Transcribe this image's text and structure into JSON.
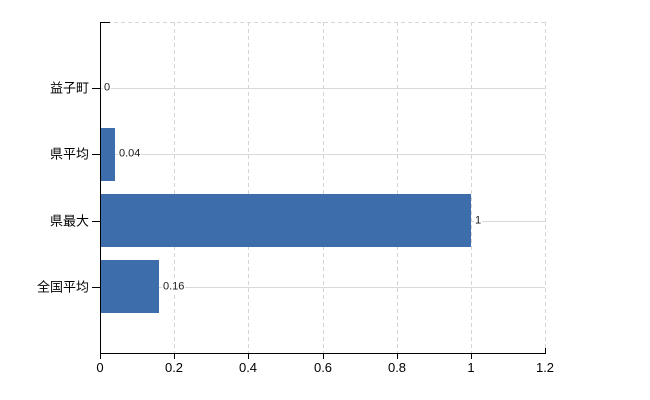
{
  "chart_data": {
    "type": "bar",
    "orientation": "horizontal",
    "title": "",
    "categories": [
      "益子町",
      "県平均",
      "県最大",
      "全国平均"
    ],
    "values": [
      0,
      0.04,
      1,
      0.16
    ],
    "value_labels": [
      "0",
      "0.04",
      "1",
      "0.16"
    ],
    "x_ticks": [
      0,
      0.2,
      0.4,
      0.6,
      0.8,
      1,
      1.2
    ],
    "x_tick_labels": [
      "0",
      "0.2",
      "0.4",
      "0.6",
      "0.8",
      "1",
      "1.2"
    ],
    "xlim": [
      0,
      1.2
    ],
    "xlabel": "",
    "ylabel": "",
    "legend": null,
    "bar_color": "#3e6dac",
    "grid": {
      "vertical": "dashed",
      "horizontal": "solid"
    },
    "gridline_color_horizontal": "#d5dbd5",
    "gridline_color_vertical": "#d5d2d8",
    "axis_color": "#000000",
    "background_color": "#ffffff"
  }
}
